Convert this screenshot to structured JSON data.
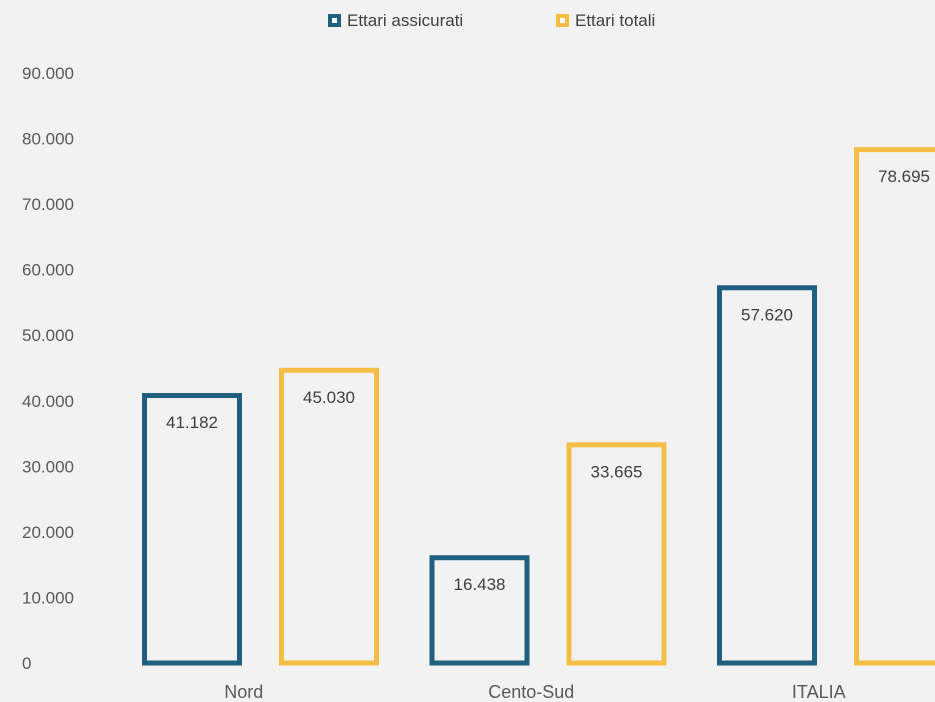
{
  "chart_data": {
    "type": "bar",
    "title": "",
    "xlabel": "",
    "ylabel": "",
    "categories": [
      "Nord",
      "Cento-Sud",
      "ITALIA"
    ],
    "series": [
      {
        "name": "Ettari assicurati",
        "values": [
          41182,
          16438,
          57620
        ],
        "labels": [
          "41.182",
          "16.438",
          "57.620"
        ]
      },
      {
        "name": "Ettari totali",
        "values": [
          45030,
          33665,
          78695
        ],
        "labels": [
          "45.030",
          "33.665",
          "78.695"
        ]
      }
    ],
    "ylim": [
      0,
      90000
    ],
    "yticks": [
      0,
      10000,
      20000,
      30000,
      40000,
      50000,
      60000,
      70000,
      80000,
      90000
    ],
    "ytick_labels": [
      "0",
      "10.000",
      "20.000",
      "30.000",
      "40.000",
      "50.000",
      "60.000",
      "70.000",
      "80.000",
      "90.000"
    ],
    "grid": false,
    "legend_position": "top-center",
    "bar_style": "outline",
    "colors": {
      "series": [
        "#1f5f7f",
        "#f4bd45"
      ],
      "background": "#f2f2f2"
    }
  }
}
